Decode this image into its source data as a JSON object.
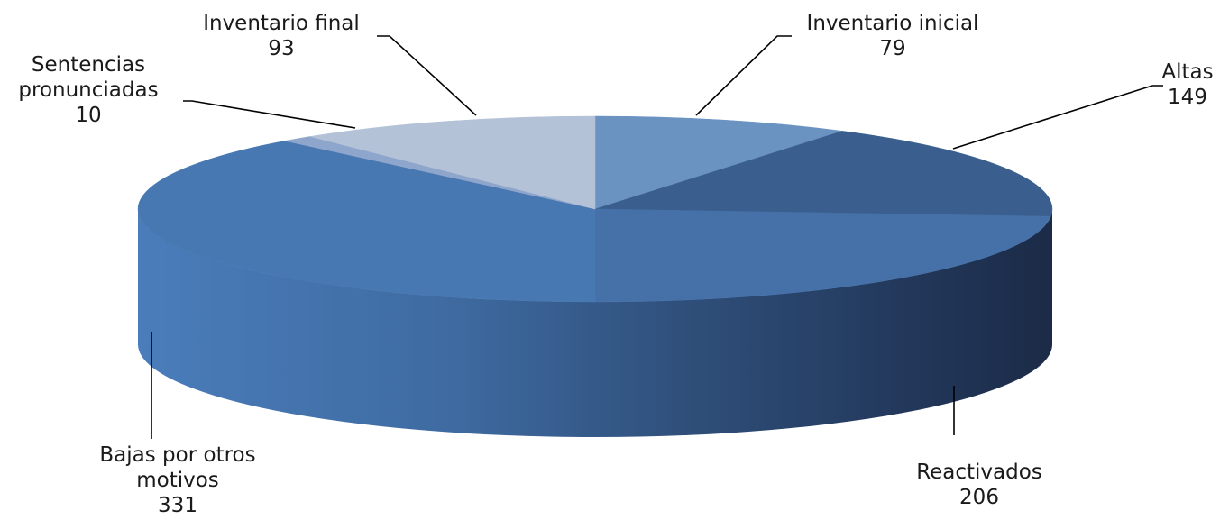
{
  "chart_data": {
    "type": "pie",
    "style": "3d-exploded-tilt",
    "title": "",
    "slices": [
      {
        "label": "Inventario inicial",
        "value": 79,
        "color": "#6a93c2"
      },
      {
        "label": "Altas",
        "value": 149,
        "color": "#3a5f8f"
      },
      {
        "label": "Reactivados",
        "value": 206,
        "color": "#4671a8"
      },
      {
        "label": "Bajas por otros motivos",
        "value": 331,
        "color": "#4878b2"
      },
      {
        "label": "Sentencias pronunciadas",
        "value": 10,
        "color": "#8fa6cc"
      },
      {
        "label": "Inventario final",
        "value": 93,
        "color": "#b4c2d8"
      }
    ],
    "data_labels": [
      {
        "lines": [
          "Inventario inicial"
        ],
        "value": "79"
      },
      {
        "lines": [
          "Altas"
        ],
        "value": "149"
      },
      {
        "lines": [
          "Reactivados"
        ],
        "value": "206"
      },
      {
        "lines": [
          "Bajas por otros",
          "motivos"
        ],
        "value": "331"
      },
      {
        "lines": [
          "Sentencias",
          "pronunciadas"
        ],
        "value": "10"
      },
      {
        "lines": [
          "Inventario final"
        ],
        "value": "93"
      }
    ],
    "legend": "none"
  }
}
